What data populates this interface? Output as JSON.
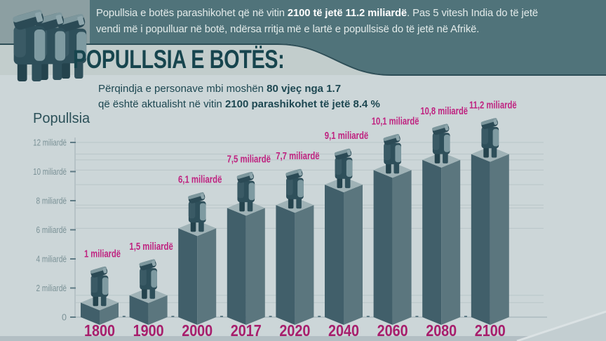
{
  "header": {
    "line1_segments": [
      {
        "t": "Popullsia e botës parashikohet që në vitin ",
        "b": false
      },
      {
        "t": "2100 të jetë 11.2 miliardë",
        "b": true
      },
      {
        "t": ". Pas 5 vitesh India do të jetë",
        "b": false
      }
    ],
    "line2_segments": [
      {
        "t": "vendi më i populluar në botë, ndërsa rritja më e lartë e popullsisë do të jetë në Afrikë.",
        "b": false
      }
    ]
  },
  "title": "POPULLSIA E BOTËS:",
  "subtitle": {
    "line1_segments": [
      {
        "t": "Përqindja e personave mbi moshën ",
        "b": false
      },
      {
        "t": "80 vjeç nga 1.7",
        "b": true
      }
    ],
    "line2_segments": [
      {
        "t": "që është aktualisht në vitin ",
        "b": false
      },
      {
        "t": "2100 parashikohet të jetë 8.4 %",
        "b": true
      }
    ]
  },
  "icons": {
    "people_group_icon": "three stylized 3D person figures",
    "person_icon": "stylized 3D person standing on each bar"
  },
  "chart_data": {
    "type": "bar",
    "title": "Popullsia e botës 1800–2100",
    "ylabel": "Popullsia",
    "xlabel": "",
    "categories": [
      "1800",
      "1900",
      "2000",
      "2017",
      "2020",
      "2040",
      "2060",
      "2080",
      "2100"
    ],
    "values": [
      1,
      1.5,
      6.1,
      7.5,
      7.7,
      9.1,
      10.1,
      10.8,
      11.2
    ],
    "value_labels": [
      "1 miliardë",
      "1,5 miliardë",
      "6,1 miliardë",
      "7,5 miliardë",
      "7,7 miliardë",
      "9,1 miliardë",
      "10,1 miliardë",
      "10,8 miliardë",
      "11,2 miliardë"
    ],
    "unit": "miliardë",
    "ylim": [
      0,
      12
    ],
    "grid": true,
    "legend": "none",
    "y_ticks": [
      {
        "value": 0,
        "label": "0"
      },
      {
        "value": 2,
        "label": "2 miliardë"
      },
      {
        "value": 4,
        "label": "4 miliardë"
      },
      {
        "value": 6,
        "label": "6 miliardë"
      },
      {
        "value": 8,
        "label": "8 miliardë"
      },
      {
        "value": 10,
        "label": "10 miliardë"
      },
      {
        "value": 12,
        "label": "12 miliardë"
      }
    ],
    "colors": {
      "bar_left": "#415f6a",
      "bar_right": "#5b767e",
      "bar_top": "#9fb2b6",
      "grid": "#b9c5c8",
      "axis": "#a7b6ba",
      "tick": "#5f7b85",
      "tick_text": "#7a9196",
      "value_label": "#bf2380",
      "year_label": "#a71e6c",
      "corner_fill": "#c3ced1",
      "corner_line": "#dbe2e4",
      "person": {
        "body": "#2e4f5a",
        "shade": "#3a5a65",
        "arm": "#7e9aa1",
        "head": "#2b4a55",
        "cap": "#7d979d",
        "leg": "#24434d",
        "face": "#8fa7ad"
      }
    }
  },
  "colors": {
    "header_teal": "#50737a",
    "header_edge": "#2d4e57",
    "title_teal": "#17454e",
    "band_bg": "#c2cdcc",
    "main_bg": "#ccd6d8",
    "people_block_bg": "#8c9fa2",
    "bottom_strip": "#b3bfc4"
  }
}
